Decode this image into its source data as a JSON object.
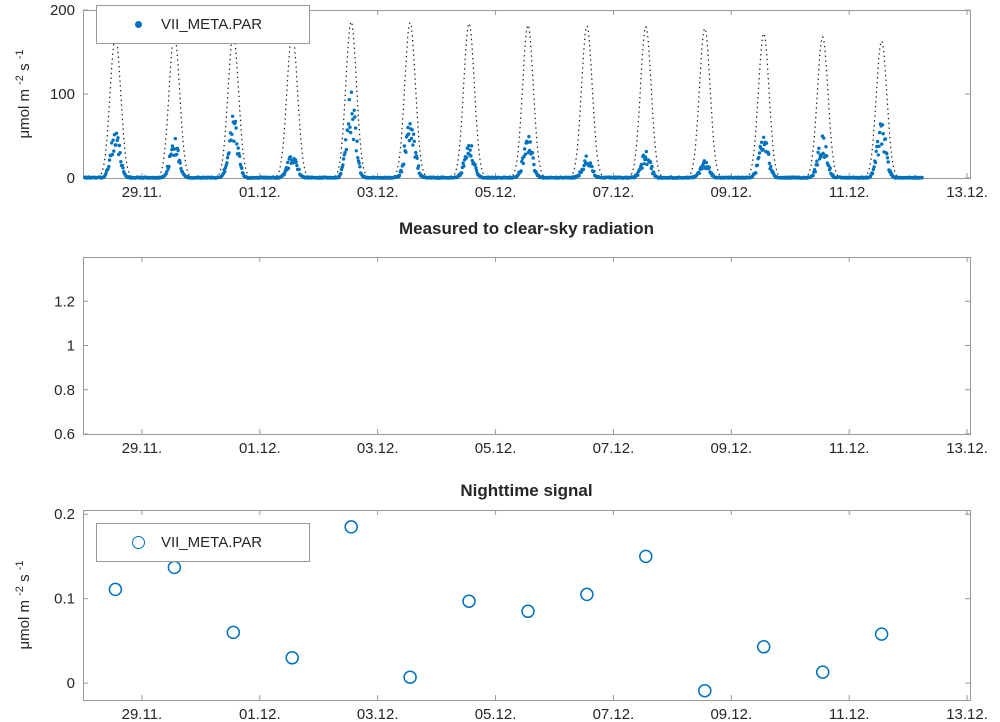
{
  "figure": {
    "colors": {
      "background": "#ffffff",
      "data_blue": "#0072BD",
      "clear_sky_black": "#1a1a1a",
      "axis_box": "#999999",
      "text": "#262626"
    }
  },
  "x_axis": {
    "xlim": [
      0,
      15.05
    ],
    "tick_days": [
      1,
      3,
      5,
      7,
      9,
      11,
      13,
      15
    ],
    "tick_labels": [
      "29.11.",
      "01.12.",
      "03.12.",
      "05.12.",
      "07.12.",
      "09.12.",
      "11.12.",
      "13.12."
    ]
  },
  "ylabel_parts": {
    "pre": "μmol m ",
    "sup1": "-2",
    "mid": " s ",
    "sup2": "-1"
  },
  "chart_data": [
    {
      "type": "scatter",
      "name": "par-timeseries",
      "title": "",
      "legend_label": "VII_META.PAR",
      "ylabel": "umol m^-2 s^-1",
      "ylim": [
        0,
        200
      ],
      "ytick_values": [
        0,
        100,
        200
      ],
      "ytick_labels": [
        "0",
        "100",
        "200"
      ],
      "legend_position": "top-left",
      "grid": false,
      "series": [
        {
          "name": "clear-sky-model",
          "style": "dotted_line",
          "color": "#1a1a1a",
          "noon_offset_days": 0.55,
          "sigma_days": 0.09,
          "daily_peaks": [
            168,
            170,
            170,
            172,
            186,
            185,
            184,
            182,
            181,
            180,
            178,
            172,
            168,
            163
          ]
        },
        {
          "name": "VII_META.PAR",
          "style": "filled_dots",
          "color": "#0072BD",
          "noon_offset_days": 0.55,
          "sigma_days": 0.075,
          "daily_peaks": [
            60,
            51,
            80,
            33,
            105,
            87,
            45,
            51,
            27,
            33,
            21,
            57,
            51,
            67
          ],
          "t_start": 0.03,
          "t_end": 14.25,
          "sample_step_days": 0.012
        }
      ]
    },
    {
      "type": "empty",
      "name": "measured-to-clearsky-ratio",
      "title": "Measured to clear-sky radiation",
      "ylim": [
        0.6,
        1.4
      ],
      "ytick_values": [
        0.6,
        0.8,
        1.0,
        1.2
      ],
      "ytick_labels": [
        "0.6",
        "0.8",
        "1",
        "1.2"
      ],
      "grid": false,
      "series": []
    },
    {
      "type": "scatter",
      "name": "nighttime-signal",
      "title": "Nighttime signal",
      "legend_label": "VII_META.PAR",
      "ylabel": "umol m^-2 s^-1",
      "ylim": [
        -0.02,
        0.205
      ],
      "ytick_values": [
        0,
        0.1,
        0.2
      ],
      "ytick_labels": [
        "0",
        "0.1",
        "0.2"
      ],
      "legend_position": "top-left",
      "grid": false,
      "series": [
        {
          "name": "VII_META.PAR",
          "style": "open_circles",
          "color": "#0072BD",
          "x_days": [
            0.55,
            1.55,
            2.55,
            3.55,
            4.55,
            5.55,
            6.55,
            7.55,
            8.55,
            9.55,
            10.55,
            11.55,
            12.55,
            13.55
          ],
          "values": [
            0.111,
            0.137,
            0.06,
            0.03,
            0.185,
            0.007,
            0.097,
            0.085,
            0.105,
            0.15,
            -0.009,
            0.043,
            0.013,
            0.058
          ]
        }
      ]
    }
  ]
}
